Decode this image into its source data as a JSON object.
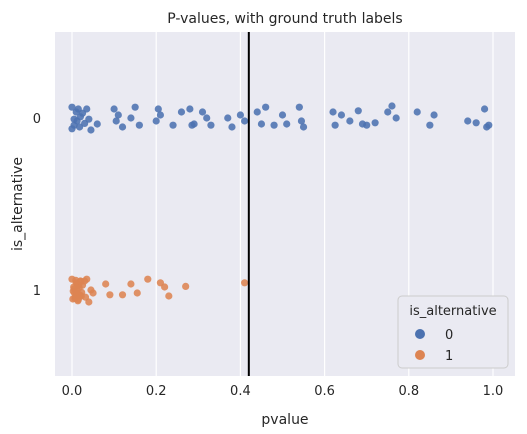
{
  "chart_data": {
    "type": "scatter",
    "title": "P-values, with ground truth labels",
    "xlabel": "pvalue",
    "ylabel": "is_alternative",
    "xlim": [
      -0.05,
      1.05
    ],
    "xticks": [
      "0.0",
      "0.2",
      "0.4",
      "0.6",
      "0.8",
      "1.0"
    ],
    "yticks": [
      "0",
      "1"
    ],
    "grid": true,
    "vline": 0.42,
    "legend": {
      "title": "is_alternative",
      "placement": "bottom-right",
      "entries": [
        "0",
        "1"
      ]
    },
    "colors": {
      "background": "#eaeaf2",
      "grid": "#ffffff",
      "series_0": "#4c72b0",
      "series_1": "#dd8452",
      "vline": "#000000"
    },
    "series": [
      {
        "name": "0",
        "category": 0,
        "x": [
          0.0,
          0.005,
          0.01,
          0.012,
          0.018,
          0.02,
          0.025,
          0.03,
          0.035,
          0.04,
          0.045,
          0.06,
          0.1,
          0.105,
          0.11,
          0.12,
          0.14,
          0.15,
          0.16,
          0.2,
          0.205,
          0.21,
          0.24,
          0.26,
          0.28,
          0.285,
          0.29,
          0.31,
          0.32,
          0.33,
          0.37,
          0.38,
          0.4,
          0.41,
          0.44,
          0.45,
          0.46,
          0.48,
          0.5,
          0.51,
          0.54,
          0.545,
          0.55,
          0.62,
          0.625,
          0.64,
          0.66,
          0.68,
          0.69,
          0.7,
          0.72,
          0.75,
          0.76,
          0.77,
          0.82,
          0.85,
          0.86,
          0.94,
          0.96,
          0.98,
          0.985,
          0.99,
          0.005,
          0.015,
          0.0
        ],
        "jitter": [
          -0.18,
          0.12,
          -0.1,
          0.05,
          0.15,
          -0.02,
          -0.08,
          0.09,
          -0.15,
          0.02,
          0.2,
          0.1,
          -0.15,
          0.05,
          -0.05,
          0.15,
          0.0,
          -0.18,
          0.12,
          0.05,
          -0.15,
          -0.05,
          0.12,
          -0.1,
          -0.15,
          0.12,
          0.1,
          -0.1,
          0.0,
          0.12,
          0.0,
          0.15,
          -0.05,
          0.05,
          -0.1,
          0.1,
          -0.18,
          0.12,
          -0.05,
          0.1,
          -0.18,
          0.05,
          0.15,
          -0.1,
          0.12,
          -0.05,
          0.05,
          -0.12,
          0.1,
          0.12,
          0.08,
          -0.1,
          -0.2,
          0.0,
          -0.1,
          0.12,
          -0.05,
          0.05,
          0.08,
          -0.15,
          0.15,
          0.12,
          0.02,
          -0.15,
          0.18
        ]
      },
      {
        "name": "1",
        "category": 1,
        "x": [
          0.0,
          0.002,
          0.004,
          0.006,
          0.008,
          0.01,
          0.012,
          0.014,
          0.016,
          0.018,
          0.02,
          0.022,
          0.003,
          0.005,
          0.007,
          0.009,
          0.011,
          0.013,
          0.015,
          0.017,
          0.019,
          0.021,
          0.023,
          0.025,
          0.03,
          0.032,
          0.035,
          0.04,
          0.045,
          0.05,
          0.08,
          0.09,
          0.12,
          0.14,
          0.155,
          0.18,
          0.21,
          0.22,
          0.23,
          0.27,
          0.41
        ],
        "jitter": [
          -0.18,
          0.15,
          -0.05,
          0.05,
          0.12,
          -0.12,
          0.0,
          0.18,
          -0.08,
          0.08,
          -0.15,
          0.1,
          0.02,
          -0.02,
          0.14,
          -0.16,
          0.06,
          -0.1,
          0.16,
          -0.04,
          0.1,
          -0.14,
          0.04,
          -0.08,
          -0.15,
          0.12,
          -0.18,
          0.2,
          0.0,
          0.05,
          -0.1,
          0.08,
          0.08,
          -0.1,
          0.05,
          -0.18,
          -0.12,
          -0.05,
          0.1,
          -0.06,
          -0.12
        ]
      }
    ]
  }
}
